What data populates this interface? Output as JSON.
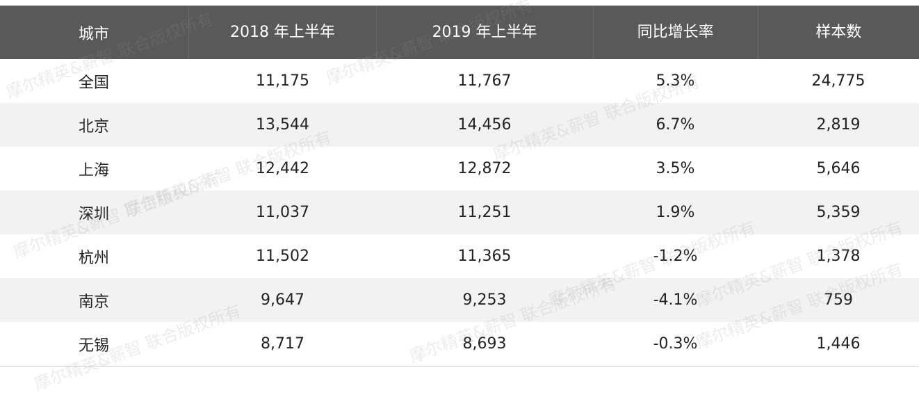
{
  "table": {
    "header": [
      "城市",
      "2018 年上半年",
      "2019 年上半年",
      "同比增长率",
      "样本数"
    ],
    "rows": [
      [
        "全国",
        "11,175",
        "11,767",
        "5.3%",
        "24,775"
      ],
      [
        "北京",
        "13,544",
        "14,456",
        "6.7%",
        "2,819"
      ],
      [
        "上海",
        "12,442",
        "12,872",
        "3.5%",
        "5,646"
      ],
      [
        "深圳",
        "11,037",
        "11,251",
        "1.9%",
        "5,359"
      ],
      [
        "杭州",
        "11,502",
        "11,365",
        "-1.2%",
        "1,378"
      ],
      [
        "南京",
        "9,647",
        "9,253",
        "-4.1%",
        "759"
      ],
      [
        "无锡",
        "8,717",
        "8,693",
        "-0.3%",
        "1,446"
      ]
    ]
  },
  "watermark": "摩尔精英&薪智 联合版权所有"
}
